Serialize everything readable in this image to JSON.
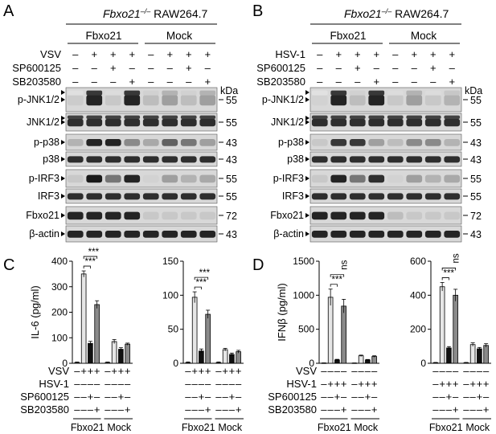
{
  "panels": {
    "A": {
      "letter": "A",
      "title_gene": "Fbxo21",
      "title_sup": "–/–",
      "title_cell": " RAW264.7",
      "groups": [
        "Fbxo21",
        "Mock"
      ],
      "treatments": [
        {
          "label": "VSV",
          "signs": [
            "–",
            "+",
            "+",
            "+",
            "–",
            "+",
            "+",
            "+"
          ]
        },
        {
          "label": "SP600125",
          "signs": [
            "–",
            "–",
            "+",
            "–",
            "–",
            "–",
            "+",
            "–"
          ]
        },
        {
          "label": "SB203580",
          "signs": [
            "–",
            "–",
            "–",
            "+",
            "–",
            "–",
            "–",
            "+"
          ]
        }
      ],
      "kda_label": "kDa",
      "blots": [
        {
          "label": "p-JNK1/2",
          "marker": "55",
          "arrows": true,
          "lanes": [
            0.08,
            0.9,
            0.1,
            0.9,
            0.15,
            0.3,
            0.15,
            0.3
          ]
        },
        {
          "label": "JNK1/2",
          "marker": "55",
          "arrows": true,
          "lanes": [
            0.85,
            0.85,
            0.85,
            0.85,
            0.85,
            0.85,
            0.85,
            0.85
          ]
        },
        {
          "label": "p-p38",
          "marker": "43",
          "arrows": false,
          "lanes": [
            0.2,
            0.9,
            0.9,
            0.4,
            0.25,
            0.6,
            0.5,
            0.3
          ]
        },
        {
          "label": "p38",
          "marker": "43",
          "arrows": false,
          "lanes": [
            0.85,
            0.85,
            0.85,
            0.85,
            0.85,
            0.85,
            0.85,
            0.85
          ]
        },
        {
          "label": "p-IRF3",
          "marker": "55",
          "arrows": false,
          "lanes": [
            0.1,
            0.95,
            0.5,
            0.9,
            0.05,
            0.3,
            0.2,
            0.25
          ]
        },
        {
          "label": "IRF3",
          "marker": "55",
          "arrows": false,
          "lanes": [
            0.85,
            0.85,
            0.85,
            0.85,
            0.85,
            0.85,
            0.85,
            0.85
          ]
        },
        {
          "label": "Fbxo21",
          "marker": "72",
          "arrows": false,
          "lanes": [
            0.9,
            0.9,
            0.9,
            0.9,
            0.1,
            0.1,
            0.1,
            0.1
          ]
        },
        {
          "label": "β-actin",
          "marker": "43",
          "arrows": false,
          "lanes": [
            0.9,
            0.9,
            0.9,
            0.9,
            0.9,
            0.9,
            0.9,
            0.9
          ]
        }
      ]
    },
    "B": {
      "letter": "B",
      "title_gene": "Fbxo21",
      "title_sup": "–/–",
      "title_cell": " RAW264.7",
      "groups": [
        "Fbxo21",
        "Mock"
      ],
      "treatments": [
        {
          "label": "HSV-1",
          "signs": [
            "–",
            "+",
            "+",
            "+",
            "–",
            "+",
            "+",
            "+"
          ]
        },
        {
          "label": "SP600125",
          "signs": [
            "–",
            "–",
            "+",
            "–",
            "–",
            "–",
            "+",
            "–"
          ]
        },
        {
          "label": "SB203580",
          "signs": [
            "–",
            "–",
            "–",
            "+",
            "–",
            "–",
            "–",
            "+"
          ]
        }
      ],
      "kda_label": "kDa",
      "blots": [
        {
          "label": "p-JNK1/2",
          "marker": "55",
          "arrows": true,
          "lanes": [
            0.05,
            0.9,
            0.15,
            0.9,
            0.1,
            0.3,
            0.1,
            0.2
          ]
        },
        {
          "label": "JNK1/2",
          "marker": "55",
          "arrows": true,
          "lanes": [
            0.85,
            0.85,
            0.85,
            0.85,
            0.85,
            0.85,
            0.85,
            0.85
          ]
        },
        {
          "label": "p-p38",
          "marker": "43",
          "arrows": false,
          "lanes": [
            0.1,
            0.8,
            0.8,
            0.3,
            0.15,
            0.4,
            0.4,
            0.2
          ]
        },
        {
          "label": "p38",
          "marker": "43",
          "arrows": false,
          "lanes": [
            0.85,
            0.85,
            0.85,
            0.85,
            0.85,
            0.85,
            0.85,
            0.85
          ]
        },
        {
          "label": "p-IRF3",
          "marker": "55",
          "arrows": false,
          "lanes": [
            0.1,
            0.9,
            0.5,
            0.85,
            0.05,
            0.3,
            0.2,
            0.25
          ]
        },
        {
          "label": "IRF3",
          "marker": "55",
          "arrows": false,
          "lanes": [
            0.85,
            0.85,
            0.85,
            0.85,
            0.85,
            0.85,
            0.85,
            0.85
          ]
        },
        {
          "label": "Fbxo21",
          "marker": "72",
          "arrows": false,
          "lanes": [
            0.9,
            0.9,
            0.9,
            0.9,
            0.15,
            0.1,
            0.1,
            0.1
          ]
        },
        {
          "label": "β-actin",
          "marker": "43",
          "arrows": false,
          "lanes": [
            0.9,
            0.9,
            0.9,
            0.9,
            0.9,
            0.9,
            0.9,
            0.9
          ]
        }
      ]
    },
    "C": {
      "letter": "C"
    },
    "D": {
      "letter": "D"
    }
  },
  "chart_data": [
    {
      "type": "bar",
      "ylabel": "IL-6 (pg/ml)",
      "ylim": [
        0,
        400
      ],
      "yticks": [
        0,
        100,
        200,
        300,
        400
      ],
      "values": [
        3,
        350,
        78,
        230,
        3,
        85,
        55,
        75
      ],
      "errors": [
        2,
        12,
        8,
        15,
        2,
        8,
        6,
        4
      ],
      "significance": [
        [
          "***",
          1,
          2
        ],
        [
          "***",
          1,
          3
        ]
      ]
    },
    {
      "type": "bar",
      "ylabel": "",
      "ylim": [
        0,
        150
      ],
      "yticks": [
        0,
        50,
        100,
        150
      ],
      "values": [
        1,
        97,
        18,
        72,
        1,
        20,
        13,
        17
      ],
      "errors": [
        1,
        8,
        3,
        6,
        1,
        2,
        2,
        2
      ],
      "significance": [
        [
          "***",
          1,
          2
        ],
        [
          "***",
          1,
          3
        ]
      ]
    },
    {
      "type": "bar",
      "ylabel": "IFNβ (pg/ml)",
      "ylim": [
        0,
        1500
      ],
      "yticks": [
        0,
        500,
        1000,
        1500
      ],
      "values": [
        3,
        970,
        50,
        840,
        3,
        110,
        50,
        100
      ],
      "errors": [
        3,
        120,
        8,
        100,
        2,
        10,
        6,
        10
      ],
      "significance": [
        [
          "***",
          1,
          2
        ],
        [
          "ns",
          1,
          3
        ]
      ]
    },
    {
      "type": "bar",
      "ylabel": "",
      "ylim": [
        0,
        600
      ],
      "yticks": [
        0,
        200,
        400,
        600
      ],
      "values": [
        3,
        450,
        90,
        400,
        3,
        110,
        85,
        105
      ],
      "errors": [
        2,
        25,
        8,
        35,
        2,
        10,
        8,
        10
      ],
      "significance": [
        [
          "***",
          1,
          2
        ],
        [
          "ns",
          1,
          3
        ]
      ]
    }
  ],
  "bar_colors": [
    "#ffffff",
    "#e6e6e6",
    "#111111",
    "#8a8a8a",
    "#ffffff",
    "#e6e6e6",
    "#111111",
    "#8a8a8a"
  ],
  "bottom_rows": {
    "C": [
      {
        "label": "VSV",
        "signs": [
          "–",
          "+",
          "+",
          "+",
          "–",
          "+",
          "+",
          "+"
        ]
      },
      {
        "label": "HSV-1",
        "signs": [
          "–",
          "–",
          "–",
          "–",
          "–",
          "–",
          "–",
          "–"
        ]
      },
      {
        "label": "SP600125",
        "signs": [
          "–",
          "–",
          "+",
          "–",
          "–",
          "–",
          "+",
          "–"
        ]
      },
      {
        "label": "SB203580",
        "signs": [
          "–",
          "–",
          "–",
          "+",
          "–",
          "–",
          "–",
          "+"
        ]
      }
    ],
    "D": [
      {
        "label": "VSV",
        "signs": [
          "–",
          "–",
          "–",
          "–",
          "–",
          "–",
          "–",
          "–"
        ]
      },
      {
        "label": "HSV-1",
        "signs": [
          "–",
          "+",
          "+",
          "+",
          "–",
          "+",
          "+",
          "+"
        ]
      },
      {
        "label": "SP600125",
        "signs": [
          "–",
          "–",
          "+",
          "–",
          "–",
          "–",
          "+",
          "–"
        ]
      },
      {
        "label": "SB203580",
        "signs": [
          "–",
          "–",
          "–",
          "+",
          "–",
          "–",
          "–",
          "+"
        ]
      }
    ],
    "groups": [
      "Fbxo21",
      "Mock"
    ]
  }
}
